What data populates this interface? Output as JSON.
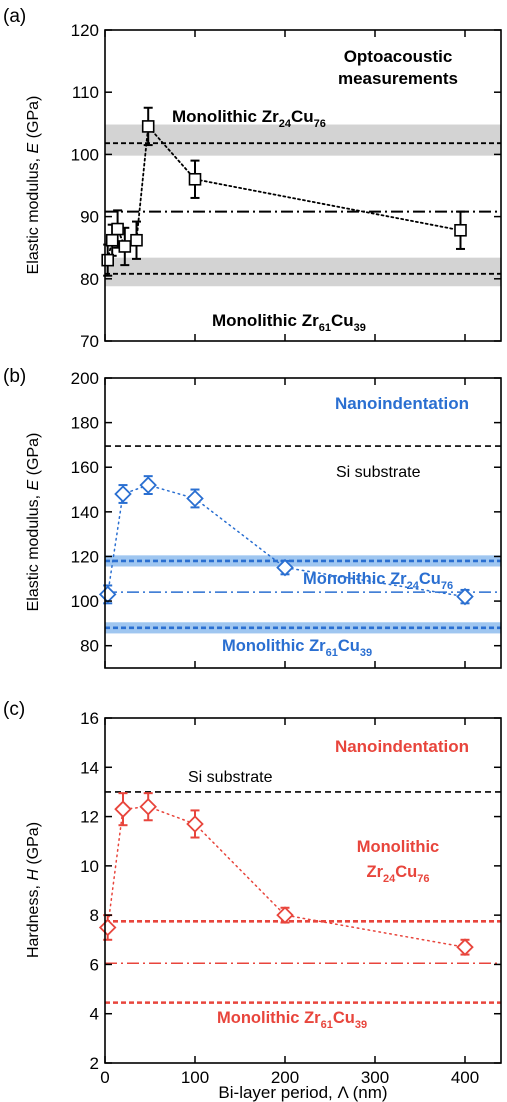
{
  "chart_data": [
    {
      "panel_label": "(a)",
      "type": "scatter",
      "title": "Optoacoustic measurements",
      "title_lines": [
        "Optoacoustic",
        "measurements"
      ],
      "ylabel": "Elastic modulus, E (GPa)",
      "ylabel_parts": [
        "Elastic modulus, ",
        "E",
        " (GPa)"
      ],
      "xlabel": "",
      "xlim": [
        0,
        440
      ],
      "ylim": [
        70,
        120
      ],
      "yticks": [
        70,
        80,
        90,
        100,
        110,
        120
      ],
      "ytick_labels": [
        "70",
        "80",
        "90",
        "100",
        "110",
        "120"
      ],
      "color": "#000000",
      "marker": "square",
      "series": [
        {
          "x": [
            3,
            8,
            14,
            22,
            35,
            48,
            100,
            395
          ],
          "y": [
            83,
            86.2,
            88,
            85.2,
            86.2,
            104.5,
            96,
            87.8
          ],
          "err": [
            2.5,
            2.5,
            3,
            3,
            3,
            3,
            3,
            3
          ]
        }
      ],
      "reference_lines": [
        {
          "label": "Monolithic Zr24Cu76",
          "label_parts": [
            "Monolithic Zr",
            "24",
            "Cu",
            "76"
          ],
          "value": 101.8,
          "band": [
            99.8,
            104.8
          ],
          "style": "dashed"
        },
        {
          "label": "Monolithic Zr61Cu39",
          "label_parts": [
            "Monolithic Zr",
            "61",
            "Cu",
            "39"
          ],
          "value": 80.8,
          "band": [
            78.8,
            83.4
          ],
          "style": "dashed"
        },
        {
          "value": 90.8,
          "style": "dash-dot"
        }
      ]
    },
    {
      "panel_label": "(b)",
      "type": "scatter",
      "title": "Nanoindentation",
      "ylabel": "Elastic modulus, E (GPa)",
      "ylabel_parts": [
        "Elastic modulus, ",
        "E",
        " (GPa)"
      ],
      "xlabel": "",
      "xlim": [
        0,
        440
      ],
      "ylim": [
        70,
        200
      ],
      "yticks": [
        80,
        100,
        120,
        140,
        160,
        180,
        200
      ],
      "ytick_labels": [
        "80",
        "100",
        "120",
        "140",
        "160",
        "180",
        "200"
      ],
      "color": "#2a6fd1",
      "marker": "diamond",
      "series": [
        {
          "x": [
            3,
            20,
            48,
            100,
            200,
            400
          ],
          "y": [
            103,
            148,
            152,
            146,
            115,
            102
          ],
          "err": [
            4,
            4,
            4,
            4,
            3,
            3
          ]
        }
      ],
      "reference_lines": [
        {
          "label": "Si substrate",
          "value": 169.5,
          "style": "dashed-black"
        },
        {
          "label": "Monolithic Zr24Cu76",
          "label_parts": [
            "Monolithic Zr",
            "24",
            "Cu",
            "76"
          ],
          "value": 118,
          "band": [
            115.5,
            120.5
          ],
          "style": "dotted"
        },
        {
          "label": "Monolithic Zr61Cu39",
          "label_parts": [
            "Monolithic Zr",
            "61",
            "Cu",
            "39"
          ],
          "value": 88,
          "band": [
            85.5,
            90.5
          ],
          "style": "dotted"
        },
        {
          "value": 104,
          "style": "dash-dot"
        }
      ]
    },
    {
      "panel_label": "(c)",
      "type": "scatter",
      "title": "Nanoindentation",
      "ylabel": "Hardness, H (GPa)",
      "ylabel_parts": [
        "Hardness, ",
        "H",
        " (GPa)"
      ],
      "xlabel": "Bi-layer period, Λ (nm)",
      "xlim": [
        0,
        440
      ],
      "ylim": [
        2,
        16
      ],
      "yticks": [
        2,
        4,
        6,
        8,
        10,
        12,
        14,
        16
      ],
      "ytick_labels": [
        "2",
        "4",
        "6",
        "8",
        "10",
        "12",
        "14",
        "16"
      ],
      "xticks": [
        0,
        100,
        200,
        300,
        400
      ],
      "xtick_labels": [
        "0",
        "100",
        "200",
        "300",
        "400"
      ],
      "color": "#e8453c",
      "marker": "diamond",
      "series": [
        {
          "x": [
            3,
            20,
            48,
            100,
            200,
            400
          ],
          "y": [
            7.5,
            12.3,
            12.4,
            11.7,
            8.0,
            6.7
          ],
          "err": [
            0.5,
            0.65,
            0.55,
            0.55,
            0.3,
            0.3
          ]
        }
      ],
      "reference_lines": [
        {
          "label": "Si substrate",
          "value": 13,
          "style": "dashed-black"
        },
        {
          "label": "Monolithic Zr24Cu76",
          "label_parts": [
            "Monolithic",
            "Zr",
            "24",
            "Cu",
            "76"
          ],
          "value": 7.75,
          "style": "dotted"
        },
        {
          "label": "Monolithic Zr61Cu39",
          "label_parts": [
            "Monolithic Zr",
            "61",
            "Cu",
            "39"
          ],
          "value": 4.45,
          "style": "dotted"
        },
        {
          "value": 6.05,
          "style": "dash-dot"
        }
      ]
    }
  ]
}
